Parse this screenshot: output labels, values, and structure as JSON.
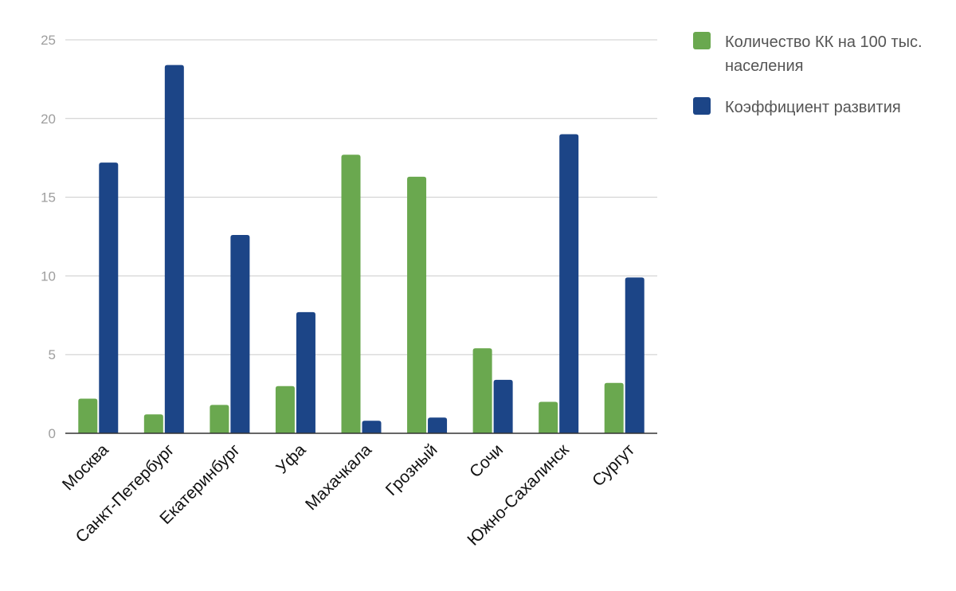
{
  "chart_data": {
    "type": "bar",
    "title": "",
    "xlabel": "",
    "ylabel": "",
    "ylim": [
      0,
      25
    ],
    "yticks": [
      0,
      5,
      10,
      15,
      20,
      25
    ],
    "grid": true,
    "legend_position": "right",
    "categories": [
      "Москва",
      "Санкт-Петербург",
      "Екатеринбург",
      "Уфа",
      "Махачкала",
      "Грозный",
      "Сочи",
      "Южно-Сахалинск",
      "Сургут"
    ],
    "series": [
      {
        "name": "Количество КК на 100 тыс. населения",
        "color": "#6aa84f",
        "values": [
          2.2,
          1.2,
          1.8,
          3.0,
          17.7,
          16.3,
          5.4,
          2.0,
          3.2
        ]
      },
      {
        "name": "Коэффициент развития",
        "color": "#1c4587",
        "values": [
          17.2,
          23.4,
          12.6,
          7.7,
          0.8,
          1.0,
          3.4,
          19.0,
          9.9
        ]
      }
    ]
  }
}
